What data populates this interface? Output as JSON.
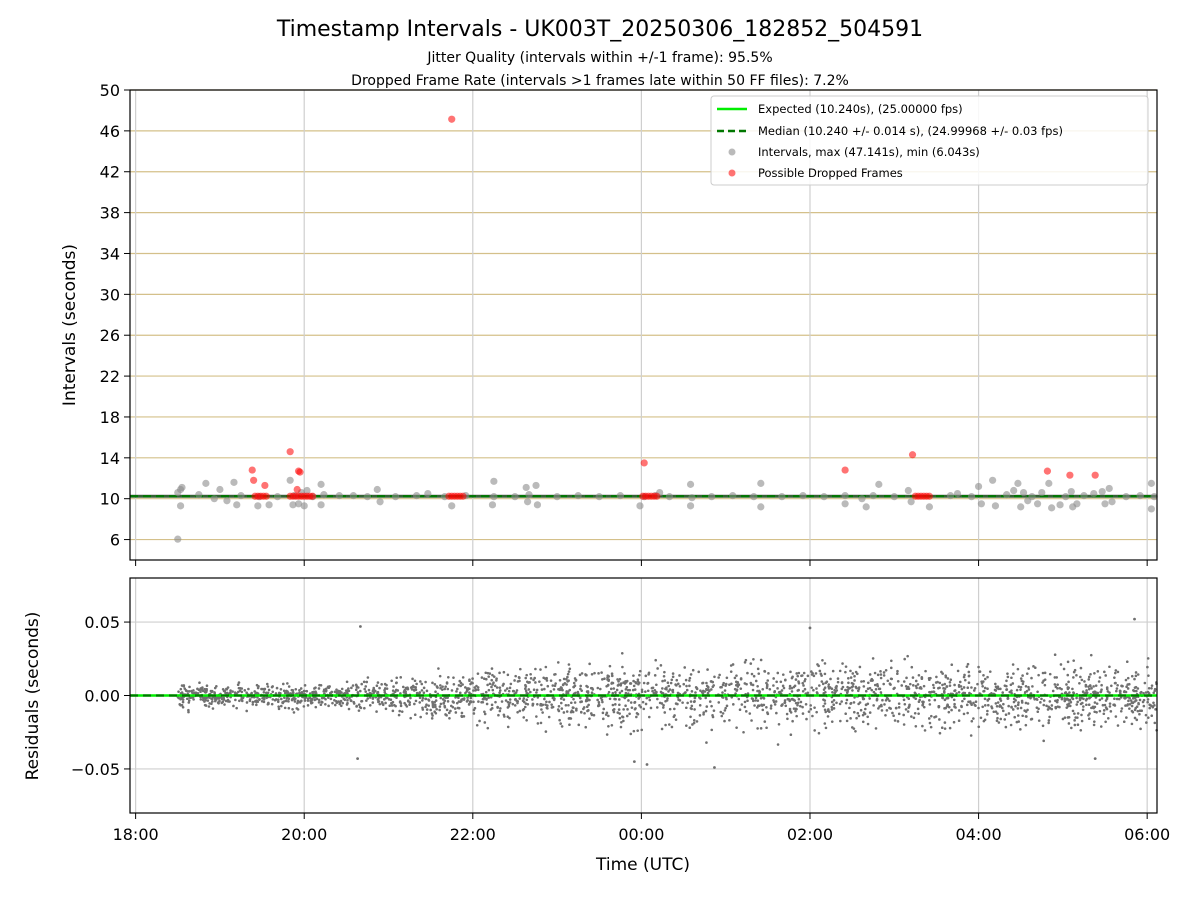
{
  "figure": {
    "title": "Timestamp Intervals - UK003T_20250306_182852_504591",
    "subtitle_1": "Jitter Quality (intervals within +/-1 frame): 95.5%",
    "subtitle_2": "Dropped Frame Rate (intervals >1 frames late within 50 FF files): 7.2%",
    "colors": {
      "expected": "#00ee00",
      "median": "#007700",
      "intervals": "#8c8c8c",
      "dropped": "#ff0000",
      "grid_top": "#d4c08a",
      "grid": "#cfcfcf",
      "residuals": "#707070"
    }
  },
  "chart_data": [
    {
      "type": "scatter",
      "panel": "intervals",
      "ylabel": "Intervals (seconds)",
      "xlabel": "",
      "x_is_time": true,
      "x_time_range_utc": [
        "17:56",
        "06:07"
      ],
      "ylim": [
        4,
        50
      ],
      "yticks": [
        6,
        10,
        14,
        18,
        22,
        26,
        30,
        34,
        38,
        42,
        46,
        50
      ],
      "yticklabels": [
        "6",
        "10",
        "14",
        "18",
        "22",
        "26",
        "30",
        "34",
        "38",
        "42",
        "46",
        "50"
      ],
      "xticks": [
        "18:00",
        "20:00",
        "22:00",
        "00:00",
        "02:00",
        "04:00",
        "06:00"
      ],
      "grid": true,
      "legend_position": "top-right",
      "legend": [
        "Expected (10.240s), (25.00000 fps)",
        "Median (10.240 +/- 0.014 s), (24.99968 +/- 0.03 fps)",
        "Intervals, max (47.141s), min (6.043s)",
        "Possible Dropped Frames"
      ],
      "expected_value": 10.24,
      "median_value": 10.24,
      "series": [
        {
          "name": "Intervals, max (47.141s), min (6.043s)",
          "points": [
            [
              "18:30",
              6.04
            ],
            [
              "18:30",
              10.6
            ],
            [
              "18:32",
              10.9
            ],
            [
              "18:33",
              11.1
            ],
            [
              "18:32",
              9.3
            ],
            [
              "18:45",
              10.4
            ],
            [
              "18:50",
              11.5
            ],
            [
              "18:56",
              10.0
            ],
            [
              "19:00",
              10.9
            ],
            [
              "19:05",
              9.8
            ],
            [
              "19:10",
              11.6
            ],
            [
              "19:12",
              9.4
            ],
            [
              "19:15",
              10.3
            ],
            [
              "19:27",
              9.3
            ],
            [
              "19:28",
              10.2
            ],
            [
              "19:35",
              9.4
            ],
            [
              "19:41",
              10.2
            ],
            [
              "19:50",
              11.8
            ],
            [
              "19:52",
              9.4
            ],
            [
              "19:53",
              10.3
            ],
            [
              "19:56",
              9.5
            ],
            [
              "19:58",
              10.6
            ],
            [
              "20:00",
              9.3
            ],
            [
              "20:02",
              10.8
            ],
            [
              "20:06",
              10.2
            ],
            [
              "20:12",
              11.4
            ],
            [
              "20:14",
              10.4
            ],
            [
              "20:12",
              9.4
            ],
            [
              "20:25",
              10.3
            ],
            [
              "20:35",
              10.3
            ],
            [
              "20:45",
              10.2
            ],
            [
              "20:52",
              10.9
            ],
            [
              "20:54",
              9.7
            ],
            [
              "21:05",
              10.2
            ],
            [
              "21:20",
              10.3
            ],
            [
              "21:28",
              10.5
            ],
            [
              "21:40",
              10.2
            ],
            [
              "21:45",
              9.3
            ],
            [
              "21:55",
              10.3
            ],
            [
              "22:15",
              10.2
            ],
            [
              "22:15",
              11.7
            ],
            [
              "22:14",
              9.4
            ],
            [
              "22:30",
              10.2
            ],
            [
              "22:38",
              11.1
            ],
            [
              "22:39",
              9.7
            ],
            [
              "22:40",
              10.4
            ],
            [
              "22:45",
              11.3
            ],
            [
              "22:46",
              9.4
            ],
            [
              "23:00",
              10.2
            ],
            [
              "23:15",
              10.3
            ],
            [
              "23:30",
              10.2
            ],
            [
              "23:45",
              10.3
            ],
            [
              "23:59",
              9.3
            ],
            [
              "00:02",
              10.2
            ],
            [
              "00:10",
              10.3
            ],
            [
              "00:13",
              10.6
            ],
            [
              "00:20",
              10.2
            ],
            [
              "00:35",
              11.4
            ],
            [
              "00:36",
              10.1
            ],
            [
              "00:35",
              9.3
            ],
            [
              "00:50",
              10.2
            ],
            [
              "01:05",
              10.3
            ],
            [
              "01:20",
              10.2
            ],
            [
              "01:25",
              11.5
            ],
            [
              "01:25",
              9.2
            ],
            [
              "01:40",
              10.2
            ],
            [
              "01:55",
              10.3
            ],
            [
              "02:10",
              10.2
            ],
            [
              "02:25",
              10.3
            ],
            [
              "02:25",
              9.5
            ],
            [
              "02:37",
              10.0
            ],
            [
              "02:40",
              9.2
            ],
            [
              "02:45",
              10.3
            ],
            [
              "02:49",
              11.4
            ],
            [
              "03:00",
              10.2
            ],
            [
              "03:10",
              10.8
            ],
            [
              "03:12",
              9.7
            ],
            [
              "03:25",
              9.2
            ],
            [
              "03:40",
              10.3
            ],
            [
              "03:45",
              10.5
            ],
            [
              "03:55",
              10.2
            ],
            [
              "04:00",
              11.2
            ],
            [
              "04:02",
              9.5
            ],
            [
              "04:10",
              11.8
            ],
            [
              "04:12",
              9.3
            ],
            [
              "04:20",
              10.4
            ],
            [
              "04:25",
              10.8
            ],
            [
              "04:28",
              11.5
            ],
            [
              "04:30",
              9.2
            ],
            [
              "04:32",
              10.6
            ],
            [
              "04:35",
              9.8
            ],
            [
              "04:38",
              10.2
            ],
            [
              "04:42",
              9.5
            ],
            [
              "04:45",
              10.6
            ],
            [
              "04:50",
              11.5
            ],
            [
              "04:52",
              9.1
            ],
            [
              "04:58",
              9.4
            ],
            [
              "05:02",
              10.2
            ],
            [
              "05:06",
              10.7
            ],
            [
              "05:07",
              9.2
            ],
            [
              "05:10",
              9.5
            ],
            [
              "05:15",
              10.3
            ],
            [
              "05:22",
              10.5
            ],
            [
              "05:28",
              10.7
            ],
            [
              "05:30",
              9.5
            ],
            [
              "05:33",
              11.0
            ],
            [
              "05:35",
              9.7
            ],
            [
              "05:45",
              10.2
            ],
            [
              "05:55",
              10.3
            ],
            [
              "06:03",
              11.5
            ],
            [
              "06:03",
              9.0
            ],
            [
              "06:05",
              10.2
            ]
          ]
        },
        {
          "name": "Possible Dropped Frames",
          "points": [
            [
              "19:23",
              12.8
            ],
            [
              "19:24",
              11.8
            ],
            [
              "19:32",
              11.3
            ],
            [
              "19:50",
              14.6
            ],
            [
              "19:55",
              10.9
            ],
            [
              "19:56",
              12.7
            ],
            [
              "19:57",
              12.6
            ],
            [
              "21:45",
              47.14
            ],
            [
              "00:02",
              13.5
            ],
            [
              "02:25",
              12.8
            ],
            [
              "03:13",
              14.3
            ],
            [
              "04:49",
              12.7
            ],
            [
              "05:05",
              12.3
            ],
            [
              "05:23",
              12.3
            ],
            [
              "19:25",
              10.24
            ],
            [
              "19:27",
              10.24
            ],
            [
              "19:29",
              10.24
            ],
            [
              "19:31",
              10.24
            ],
            [
              "19:33",
              10.24
            ],
            [
              "19:50",
              10.24
            ],
            [
              "19:52",
              10.24
            ],
            [
              "19:54",
              10.24
            ],
            [
              "19:56",
              10.24
            ],
            [
              "19:58",
              10.24
            ],
            [
              "20:00",
              10.24
            ],
            [
              "20:02",
              10.24
            ],
            [
              "20:04",
              10.24
            ],
            [
              "20:06",
              10.24
            ],
            [
              "21:43",
              10.24
            ],
            [
              "21:45",
              10.24
            ],
            [
              "21:47",
              10.24
            ],
            [
              "21:49",
              10.24
            ],
            [
              "21:51",
              10.24
            ],
            [
              "21:53",
              10.24
            ],
            [
              "00:01",
              10.24
            ],
            [
              "00:03",
              10.24
            ],
            [
              "00:05",
              10.24
            ],
            [
              "00:07",
              10.24
            ],
            [
              "00:09",
              10.24
            ],
            [
              "00:11",
              10.24
            ],
            [
              "03:15",
              10.24
            ],
            [
              "03:17",
              10.24
            ],
            [
              "03:19",
              10.24
            ],
            [
              "03:21",
              10.24
            ],
            [
              "03:23",
              10.24
            ],
            [
              "03:25",
              10.24
            ]
          ]
        }
      ]
    },
    {
      "type": "scatter",
      "panel": "residuals",
      "ylabel": "Residuals (seconds)",
      "xlabel": "Time (UTC)",
      "x_is_time": true,
      "x_time_range_utc": [
        "17:56",
        "06:07"
      ],
      "ylim": [
        -0.08,
        0.08
      ],
      "yticks": [
        -0.05,
        0.0,
        0.05
      ],
      "yticklabels": [
        "−0.05",
        "0.00",
        "0.05"
      ],
      "xticks": [
        "18:00",
        "20:00",
        "22:00",
        "00:00",
        "02:00",
        "04:00",
        "06:00"
      ],
      "grid": true,
      "residual_spread_profile": [
        [
          "18:30",
          0.007
        ],
        [
          "20:30",
          0.008
        ],
        [
          "21:40",
          0.012
        ],
        [
          "22:30",
          0.017
        ],
        [
          "00:30",
          0.019
        ],
        [
          "03:00",
          0.019
        ],
        [
          "06:07",
          0.019
        ]
      ],
      "notable_points": [
        [
          "20:40",
          0.047
        ],
        [
          "20:38",
          -0.043
        ],
        [
          "00:52",
          -0.049
        ],
        [
          "02:00",
          0.046
        ],
        [
          "05:51",
          0.052
        ],
        [
          "23:55",
          -0.045
        ],
        [
          "00:04",
          -0.047
        ],
        [
          "05:23",
          -0.043
        ]
      ]
    }
  ]
}
